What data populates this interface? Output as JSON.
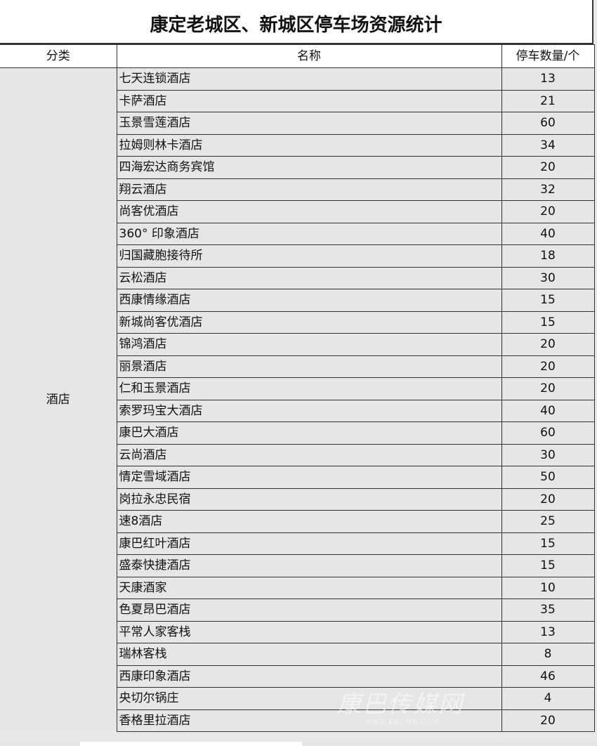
{
  "title": "康定老城区、新城区停车场资源统计",
  "headers": {
    "category": "分类",
    "name": "名称",
    "count": "停车数量/个"
  },
  "category": "酒店",
  "rows": [
    {
      "name": "七天连锁酒店",
      "count": "13"
    },
    {
      "name": "卡萨酒店",
      "count": "21"
    },
    {
      "name": "玉景雪莲酒店",
      "count": "60"
    },
    {
      "name": "拉姆则林卡酒店",
      "count": "34"
    },
    {
      "name": "四海宏达商务宾馆",
      "count": "20"
    },
    {
      "name": "翔云酒店",
      "count": "32"
    },
    {
      "name": "尚客优酒店",
      "count": "20"
    },
    {
      "name": "360° 印象酒店",
      "count": "40"
    },
    {
      "name": "归国藏胞接待所",
      "count": "18"
    },
    {
      "name": "云松酒店",
      "count": "30"
    },
    {
      "name": "西康情缘酒店",
      "count": "15"
    },
    {
      "name": "新城尚客优酒店",
      "count": "15"
    },
    {
      "name": "锦鸿酒店",
      "count": "20"
    },
    {
      "name": "丽景酒店",
      "count": "20"
    },
    {
      "name": "仁和玉景酒店",
      "count": "20"
    },
    {
      "name": "索罗玛宝大酒店",
      "count": "40"
    },
    {
      "name": "康巴大酒店",
      "count": "60"
    },
    {
      "name": "云尚酒店",
      "count": "30"
    },
    {
      "name": "情定雪域酒店",
      "count": "50"
    },
    {
      "name": "岗拉永忠民宿",
      "count": "20"
    },
    {
      "name": "速8酒店",
      "count": "25"
    },
    {
      "name": "康巴红叶酒店",
      "count": "15"
    },
    {
      "name": "盛泰快捷酒店",
      "count": "15"
    },
    {
      "name": "天康酒家",
      "count": "10"
    },
    {
      "name": "色夏昂巴酒店",
      "count": "35"
    },
    {
      "name": "平常人家客栈",
      "count": "13"
    },
    {
      "name": "瑞林客栈",
      "count": "8"
    },
    {
      "name": "西康印象酒店",
      "count": "46"
    },
    {
      "name": "央切尔锅庄",
      "count": "4"
    },
    {
      "name": "香格里拉酒店",
      "count": "20"
    }
  ],
  "watermark": {
    "text": "康巴传媒网",
    "url_text": "WWW.KBCMW.COM"
  }
}
